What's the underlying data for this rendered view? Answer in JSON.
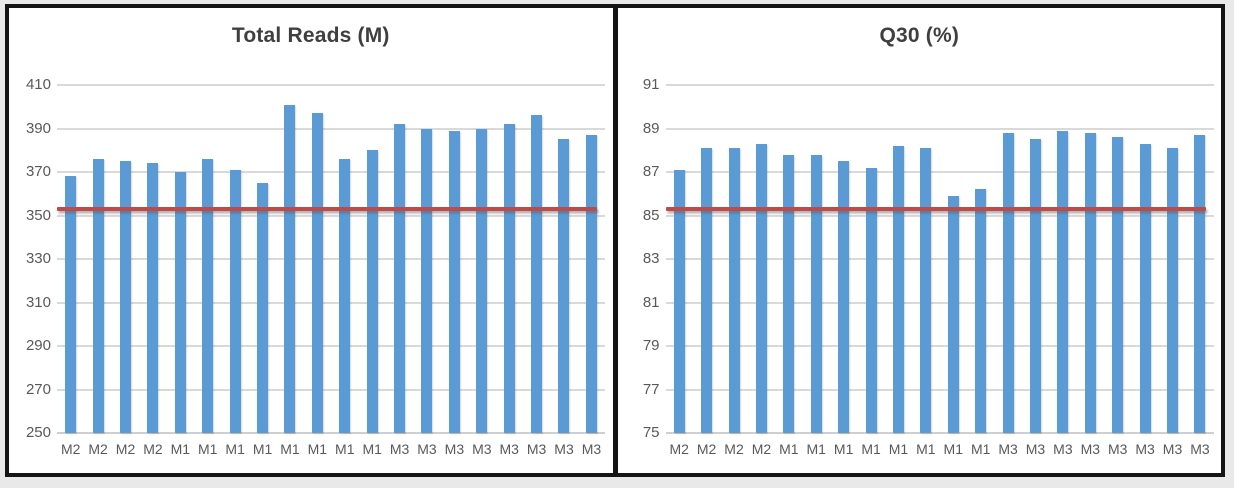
{
  "page": {
    "background_color": "#e9e9e9",
    "frame_border_color": "#141414",
    "gridline_color": "#d9d9d9",
    "axis_text_color": "#595959",
    "title_text_color": "#3f3f3f"
  },
  "chart_data": [
    {
      "type": "bar",
      "title": "Total Reads (M)",
      "xlabel": "",
      "ylabel": "",
      "ylim": [
        250,
        410
      ],
      "y_ticks": [
        410,
        390,
        370,
        350,
        330,
        310,
        290,
        270,
        250
      ],
      "grid": true,
      "legend": "none",
      "bar_color": "#5b9bd5",
      "threshold_line": {
        "value": 353,
        "color": "#be4b48"
      },
      "categories": [
        "M2",
        "M2",
        "M2",
        "M2",
        "M1",
        "M1",
        "M1",
        "M1",
        "M1",
        "M1",
        "M1",
        "M1",
        "M3",
        "M3",
        "M3",
        "M3",
        "M3",
        "M3",
        "M3",
        "M3"
      ],
      "values": [
        368,
        376,
        375,
        374,
        370,
        376,
        371,
        365,
        401,
        397,
        376,
        380,
        392,
        390,
        389,
        390,
        392,
        396,
        385,
        387
      ]
    },
    {
      "type": "bar",
      "title": "Q30 (%)",
      "xlabel": "",
      "ylabel": "",
      "ylim": [
        75,
        91
      ],
      "y_ticks": [
        91,
        89,
        87,
        85,
        83,
        81,
        79,
        77,
        75
      ],
      "grid": true,
      "legend": "none",
      "bar_color": "#5b9bd5",
      "threshold_line": {
        "value": 85.3,
        "color": "#be4b48"
      },
      "categories": [
        "M2",
        "M2",
        "M2",
        "M2",
        "M1",
        "M1",
        "M1",
        "M1",
        "M1",
        "M1",
        "M1",
        "M1",
        "M3",
        "M3",
        "M3",
        "M3",
        "M3",
        "M3",
        "M3",
        "M3"
      ],
      "values": [
        87.1,
        88.1,
        88.1,
        88.3,
        87.8,
        87.8,
        87.5,
        87.2,
        88.2,
        88.1,
        85.9,
        86.2,
        88.8,
        88.5,
        88.9,
        88.8,
        88.6,
        88.3,
        88.1,
        88.7
      ]
    }
  ]
}
